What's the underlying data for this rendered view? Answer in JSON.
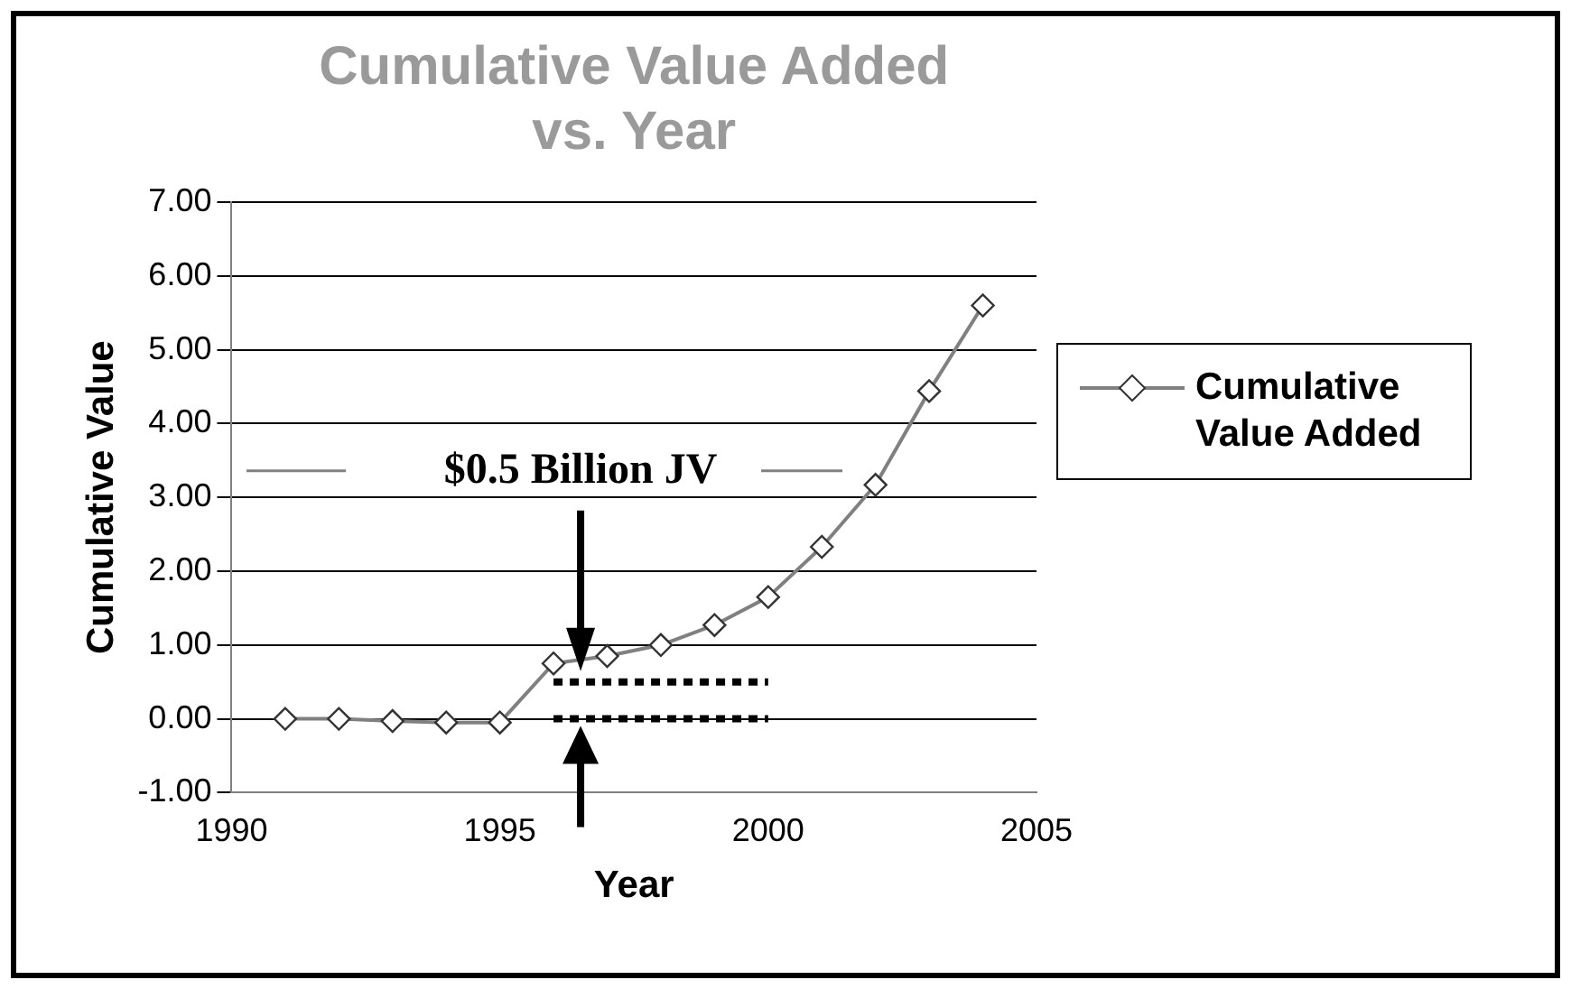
{
  "chart_data": {
    "type": "line",
    "title": "Cumulative Value Added vs. Year",
    "xlabel": "Year",
    "ylabel": "Cumulative Value",
    "x": [
      1991,
      1992,
      1993,
      1994,
      1995,
      1996,
      1997,
      1998,
      1999,
      2000,
      2001,
      2002,
      2003,
      2004
    ],
    "series": [
      {
        "name": "Cumulative Value Added",
        "color": "#808080",
        "values": [
          0.0,
          0.0,
          -0.03,
          -0.05,
          -0.05,
          0.75,
          0.85,
          1.0,
          1.27,
          1.65,
          2.33,
          3.17,
          4.44,
          5.6
        ]
      },
      {
        "type": "line",
        "color": "#000000",
        "values": [
          null,
          null,
          null,
          null,
          null,
          0.5,
          0.5,
          0.5,
          0.5,
          0.5,
          null,
          null,
          null,
          null
        ],
        "line_style": "dotted",
        "marker": "none"
      },
      {
        "type": "line",
        "color": "#000000",
        "values": [
          null,
          null,
          null,
          null,
          null,
          0,
          0,
          0,
          0,
          0,
          null,
          null,
          null,
          null
        ],
        "line_style": "dotted",
        "marker": "none"
      }
    ],
    "xlim": [
      1990,
      2005
    ],
    "xticks": [
      1990,
      1995,
      2000,
      2005
    ],
    "ylim": [
      -1,
      7
    ],
    "yticks": [
      {
        "value": -1,
        "label": "-1.00"
      },
      {
        "value": 0,
        "label": "0.00"
      },
      {
        "value": 1,
        "label": "1.00"
      },
      {
        "value": 2,
        "label": "2.00"
      },
      {
        "value": 3,
        "label": "3.00"
      },
      {
        "value": 4,
        "label": "4.00"
      },
      {
        "value": 5,
        "label": "5.00"
      },
      {
        "value": 6,
        "label": "6.00"
      },
      {
        "value": 7,
        "label": "7.00"
      }
    ],
    "annotations": [
      "$0.5 Billion JV"
    ],
    "grid": "y",
    "legend": "right",
    "marker": "diamond",
    "line_style": "solid"
  }
}
